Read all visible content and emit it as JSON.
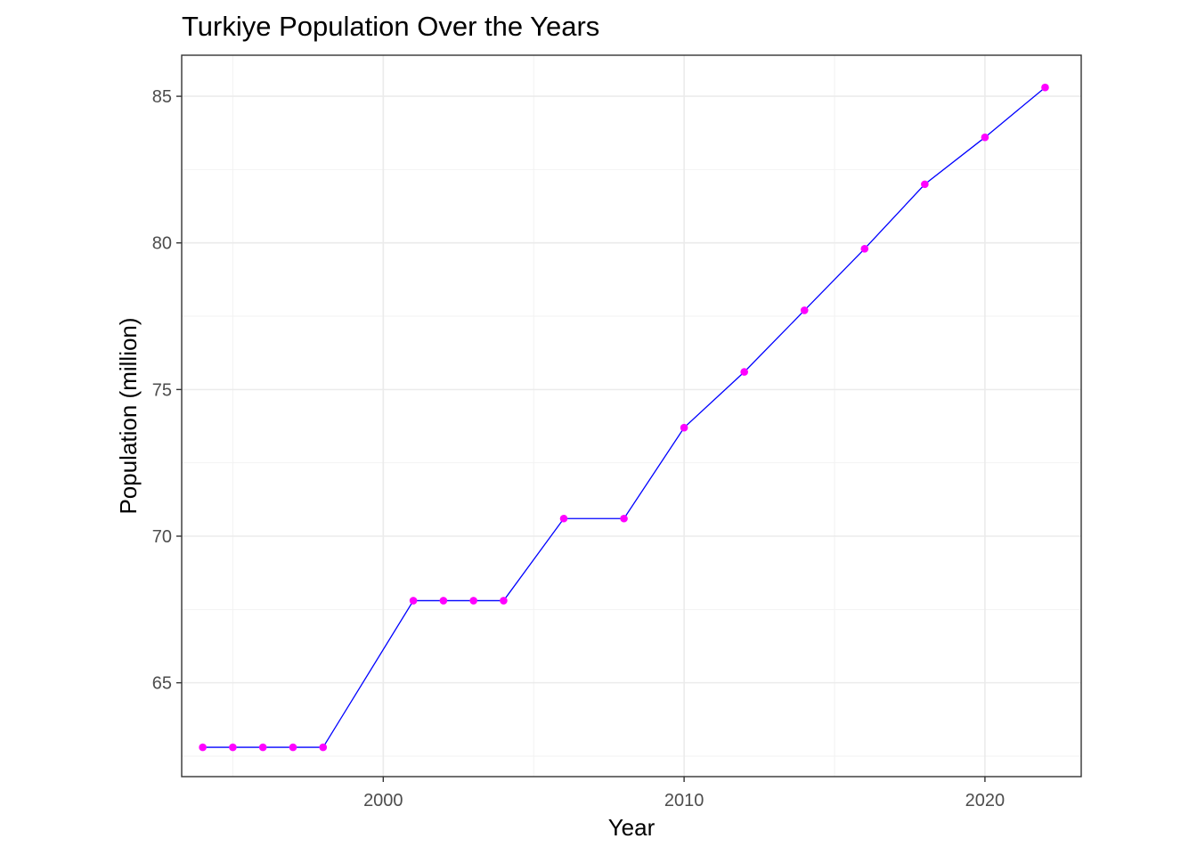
{
  "chart_data": {
    "type": "line",
    "title": "Turkiye Population Over the Years",
    "xlabel": "Year",
    "ylabel": "Population (million)",
    "xlim": [
      1993.3,
      2023.2
    ],
    "ylim": [
      61.8,
      86.4
    ],
    "x_ticks": [
      2000,
      2010,
      2020
    ],
    "y_ticks": [
      65,
      70,
      75,
      80,
      85
    ],
    "grid": true,
    "legend": "none",
    "series": [
      {
        "x": [
          1994,
          1995,
          1996,
          1997,
          1998,
          2001,
          2002,
          2003,
          2004,
          2006,
          2008,
          2010,
          2012,
          2014,
          2016,
          2018,
          2020,
          2022
        ],
        "y": [
          62.8,
          62.8,
          62.8,
          62.8,
          62.8,
          67.8,
          67.8,
          67.8,
          67.8,
          70.6,
          70.6,
          73.7,
          75.6,
          77.7,
          79.8,
          82.0,
          83.6,
          85.3
        ]
      }
    ],
    "colors": {
      "line": "#0000ff",
      "points": "#ff00ff",
      "panel_border": "#333333",
      "grid_major": "#ebebeb",
      "grid_minor": "#f2f2f2"
    }
  }
}
